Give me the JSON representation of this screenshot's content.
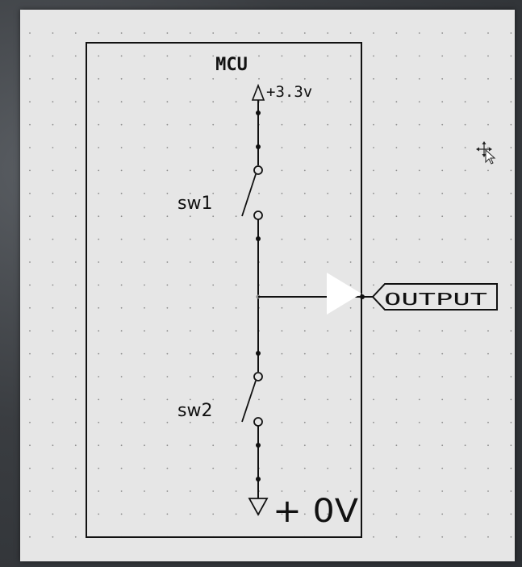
{
  "schematic": {
    "block_label": "MCU",
    "supply_label": "+3.3v",
    "ground_label": "+ 0V",
    "switch_1_label": "sw1",
    "switch_2_label": "sw2",
    "output_port_label": "OUTPUT"
  },
  "colors": {
    "sheet": "#e6e6e6",
    "wire": "#111111",
    "grid_dot": "#8c8c8c",
    "arrow_fill": "#ffffff"
  },
  "icons": {
    "cursor": "move-cursor-icon",
    "play": "play-arrow-icon"
  }
}
